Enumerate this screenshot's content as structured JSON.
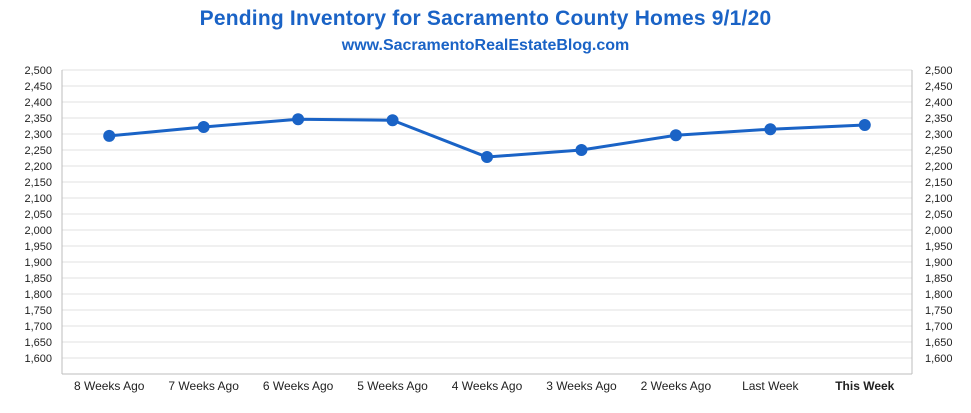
{
  "header": {
    "title": "Pending Inventory for Sacramento County Homes 9/1/20",
    "subtitle": "www.SacramentoRealEstateBlog.com"
  },
  "colors": {
    "title": "#1a63c6",
    "line": "#1a63c6",
    "highlight_label": "#1a63c6",
    "grid": "#e0e0e0"
  },
  "chart_data": {
    "type": "line",
    "title": "Pending Inventory for Sacramento County Homes 9/1/20",
    "subtitle": "www.SacramentoRealEstateBlog.com",
    "categories": [
      "8 Weeks Ago",
      "7 Weeks Ago",
      "6 Weeks Ago",
      "5 Weeks Ago",
      "4 Weeks Ago",
      "3 Weeks Ago",
      "2 Weeks Ago",
      "Last Week",
      "This Week"
    ],
    "series": [
      {
        "name": "Pending Inventory",
        "values": [
          2294,
          2322,
          2346,
          2343,
          2228,
          2250,
          2296,
          2315,
          2328
        ]
      }
    ],
    "highlight_category": "This Week",
    "ylim": [
      1550,
      2500
    ],
    "yticks": [
      1600,
      1650,
      1700,
      1750,
      1800,
      1850,
      1900,
      1950,
      2000,
      2050,
      2100,
      2150,
      2200,
      2250,
      2300,
      2350,
      2400,
      2450,
      2500
    ],
    "ytick_labels": [
      "1,600",
      "1,650",
      "1,700",
      "1,750",
      "1,800",
      "1,850",
      "1,900",
      "1,950",
      "2,000",
      "2,050",
      "2,100",
      "2,150",
      "2,200",
      "2,250",
      "2,300",
      "2,350",
      "2,400",
      "2,450",
      "2,500"
    ],
    "xlabel": "",
    "ylabel": "",
    "grid": true,
    "secondary_y_axis": true
  }
}
